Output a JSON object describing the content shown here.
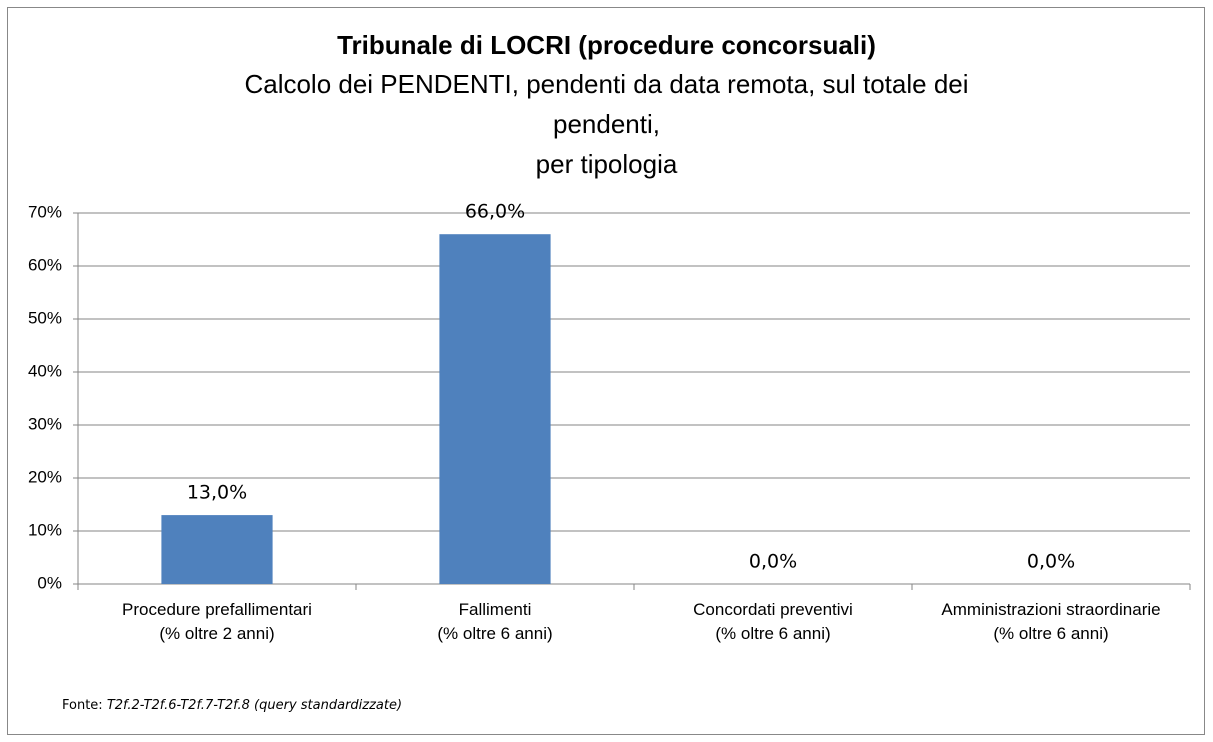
{
  "chart_data": {
    "type": "bar",
    "title": "Tribunale di LOCRI (procedure concorsuali)",
    "subtitle": "Calcolo dei PENDENTI, pendenti da data remota, sul totale dei\npendenti,\nper tipologia",
    "categories": [
      "Procedure prefallimentari\n(% oltre 2 anni)",
      "Fallimenti\n(% oltre 6 anni)",
      "Concordati preventivi\n(% oltre 6 anni)",
      "Amministrazioni straordinarie\n(% oltre 6 anni)"
    ],
    "values": [
      13,
      66,
      0,
      0
    ],
    "value_labels": [
      "13,0%",
      "66,0%",
      "0,0%",
      "0,0%"
    ],
    "color": "#4f81bd",
    "ylim": [
      0,
      70
    ],
    "yticks": [
      {
        "value": 0,
        "label": "0%"
      },
      {
        "value": 10,
        "label": "10%"
      },
      {
        "value": 20,
        "label": "20%"
      },
      {
        "value": 30,
        "label": "30%"
      },
      {
        "value": 40,
        "label": "40%"
      },
      {
        "value": 50,
        "label": "50%"
      },
      {
        "value": 60,
        "label": "60%"
      },
      {
        "value": 70,
        "label": "70%"
      }
    ],
    "grid": true,
    "source_label": "Fonte:",
    "source": "T2f.2-T2f.6-T2f.7-T2f.8 (query standardizzate)"
  }
}
